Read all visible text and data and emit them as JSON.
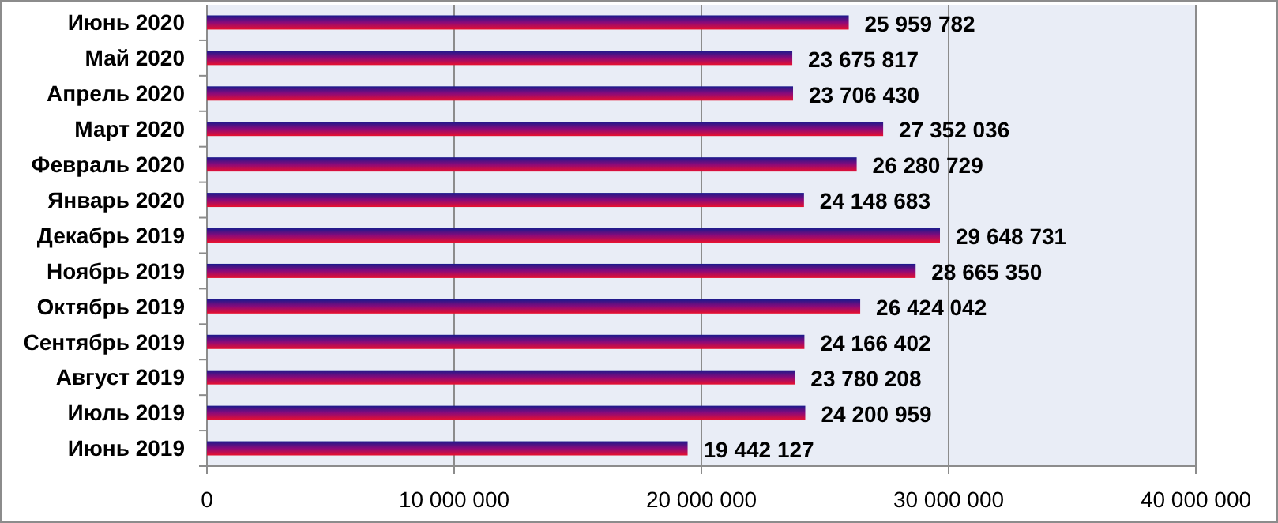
{
  "chart_data": {
    "type": "bar",
    "orientation": "horizontal",
    "categories": [
      "Июнь 2020",
      "Май 2020",
      "Апрель 2020",
      "Март 2020",
      "Февраль 2020",
      "Январь 2020",
      "Декабрь 2019",
      "Ноябрь 2019",
      "Октябрь 2019",
      "Сентябрь 2019",
      "Август 2019",
      "Июль 2019",
      "Июнь 2019"
    ],
    "values": [
      25959782,
      23675817,
      23706430,
      27352036,
      26280729,
      24148683,
      29648731,
      28665350,
      26424042,
      24166402,
      23780208,
      24200959,
      19442127
    ],
    "color": "#e8102e",
    "xlim": [
      0,
      40000000
    ],
    "xticks": [
      {
        "value": 0,
        "label": "0"
      },
      {
        "value": 10000000,
        "label": "10 000 000"
      },
      {
        "value": 20000000,
        "label": "20 000 000"
      },
      {
        "value": 30000000,
        "label": "30 000 000"
      },
      {
        "value": 40000000,
        "label": "40 000 000"
      }
    ],
    "grid": "x",
    "data_labels": true
  }
}
